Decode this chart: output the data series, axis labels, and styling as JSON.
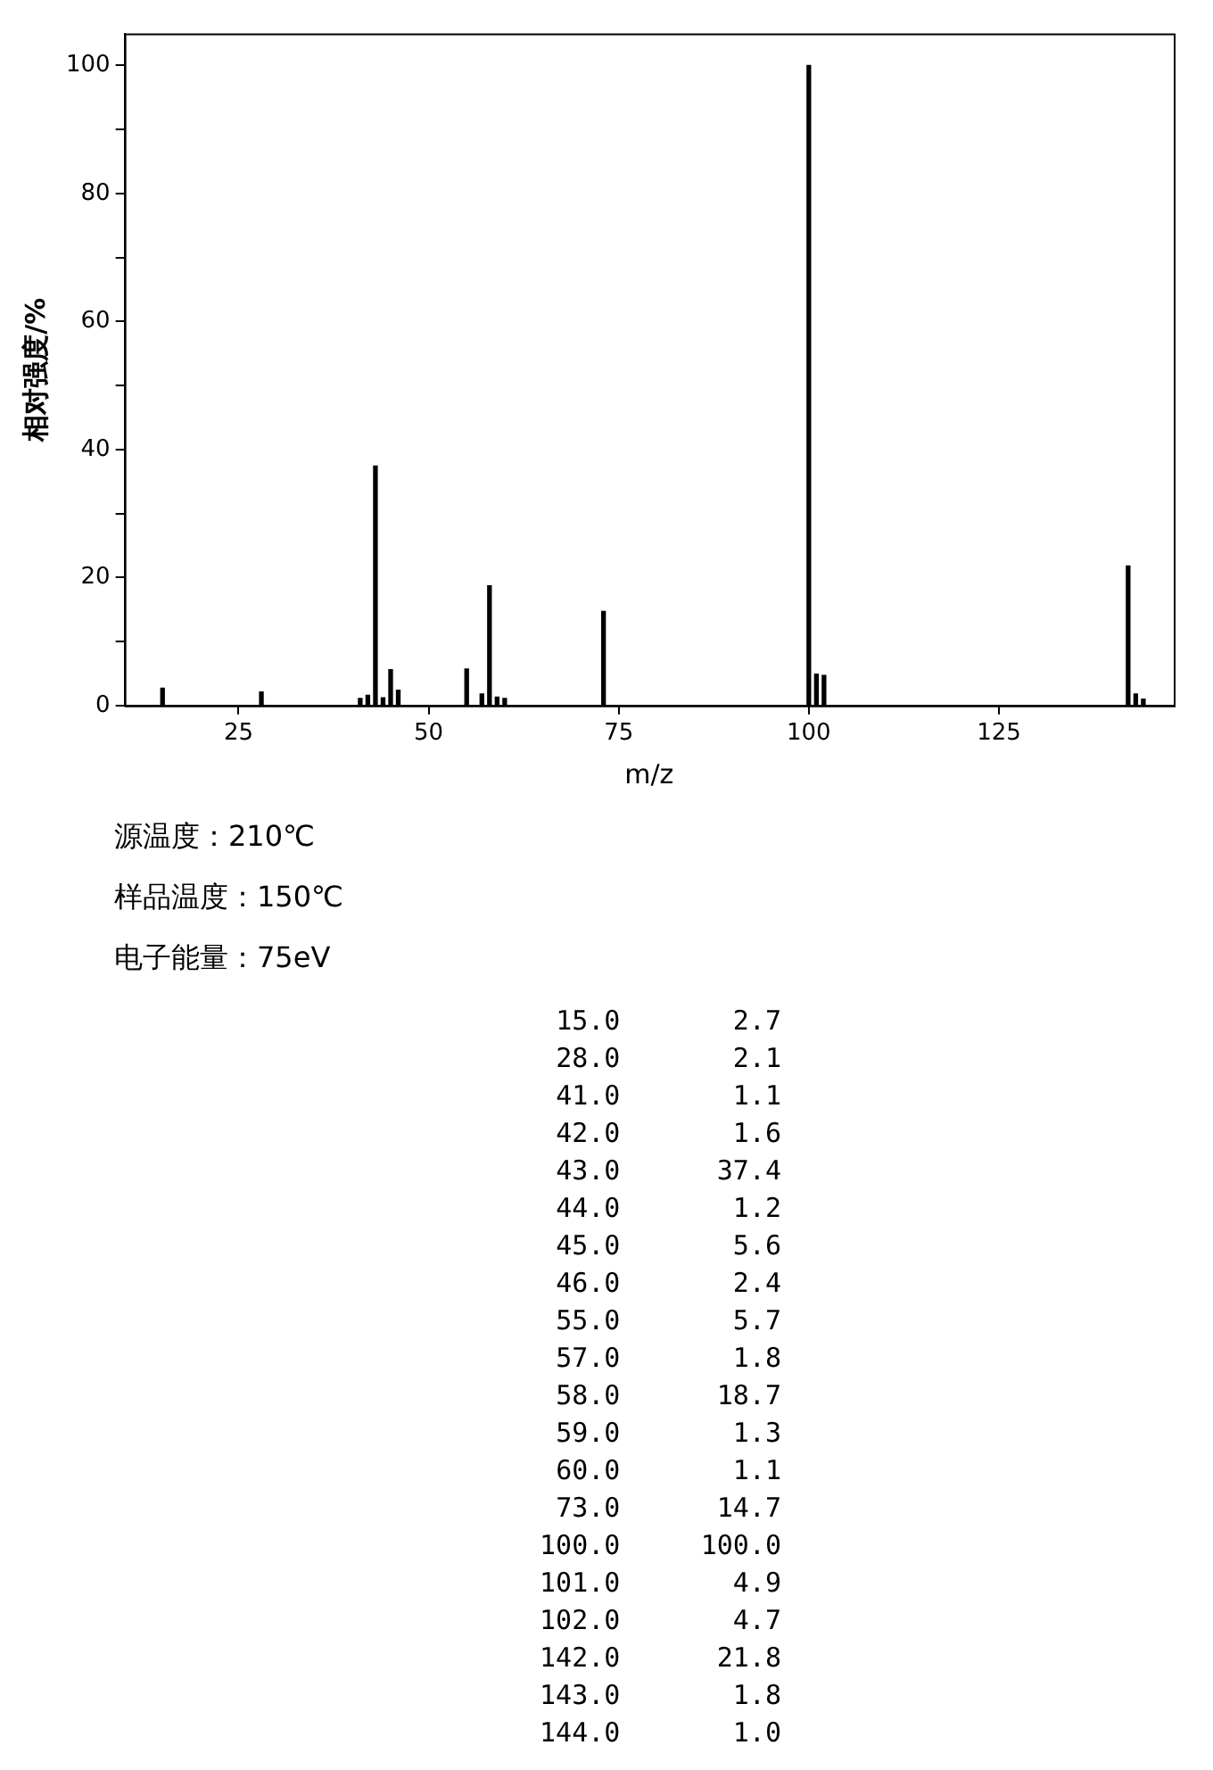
{
  "chart_data": [
    {
      "type": "bar",
      "xlabel": "m/z",
      "ylabel": "相对强度/%",
      "x": [
        15,
        28,
        41,
        42,
        43,
        44,
        45,
        46,
        55,
        57,
        58,
        59,
        60,
        73,
        100,
        101,
        102,
        142,
        143,
        144
      ],
      "values": [
        2.7,
        2.1,
        1.1,
        1.6,
        37.4,
        1.2,
        5.6,
        2.4,
        5.7,
        1.8,
        18.7,
        1.3,
        1.1,
        14.7,
        100,
        4.9,
        4.7,
        21.8,
        1.8,
        1.0
      ],
      "color": "#000000",
      "xlim": [
        10,
        148
      ],
      "xticks": [
        25,
        50,
        75,
        100,
        125
      ],
      "ylim": [
        0,
        105
      ],
      "yticks": [
        0,
        {
          "value": 10,
          "label": null
        },
        20,
        {
          "value": 30,
          "label": null
        },
        40,
        {
          "value": 50,
          "label": null
        },
        60,
        {
          "value": 70,
          "label": null
        },
        80,
        {
          "value": 90,
          "label": null
        },
        100
      ],
      "grid": false,
      "legend": false,
      "annotations": [
        "源温度：210℃",
        "样品温度：150℃",
        "电子能量：75eV"
      ]
    },
    {
      "type": "other",
      "annotations": [
        "15.0       2.7",
        "28.0       2.1",
        "41.0       1.1",
        "42.0       1.6",
        "43.0      37.4",
        "44.0       1.2",
        "45.0       5.6",
        "46.0       2.4",
        "55.0       5.7",
        "57.0       1.8",
        "58.0      18.7",
        "59.0       1.3",
        "60.0       1.1",
        "73.0      14.7",
        "100.0     100.0",
        "101.0       4.9",
        "102.0       4.7",
        "142.0      21.8",
        "143.0       1.8",
        "144.0       1.0"
      ]
    }
  ]
}
